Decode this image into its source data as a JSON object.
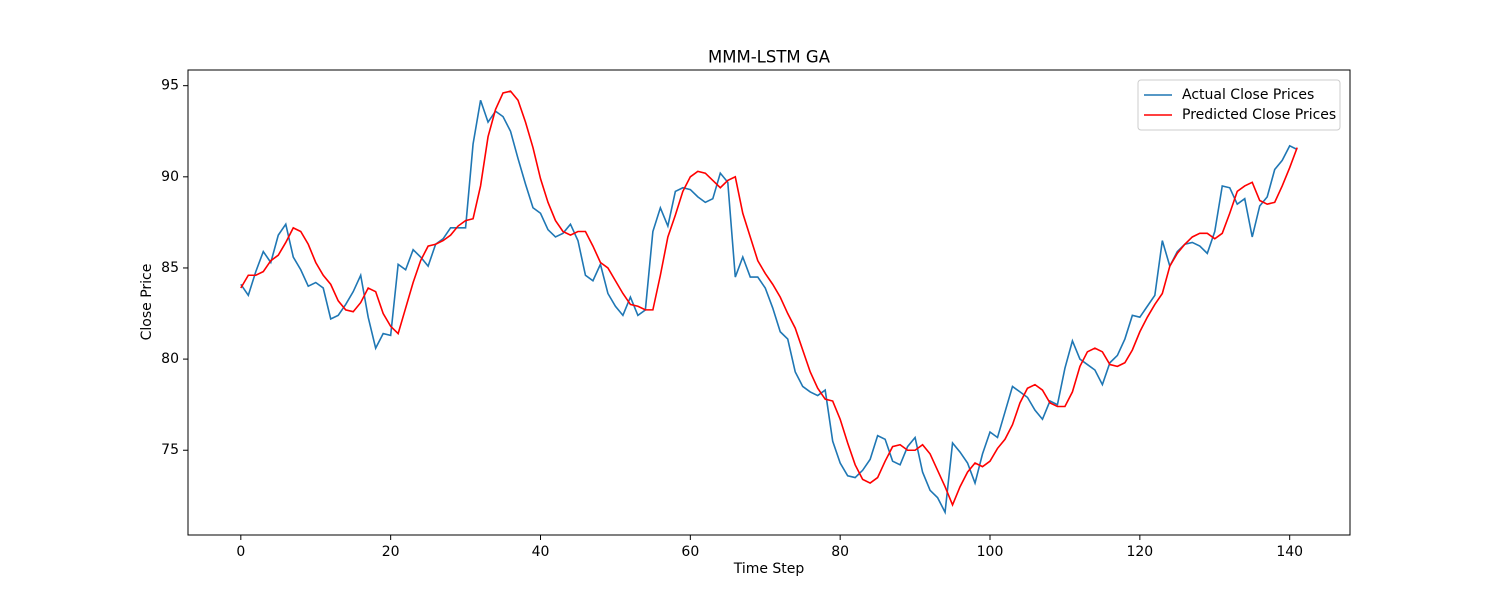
{
  "chart_data": {
    "type": "line",
    "title": "MMM-LSTM GA",
    "x_label": "Time Step",
    "y_label": "Close Price",
    "x": [
      0,
      1,
      2,
      3,
      4,
      5,
      6,
      7,
      8,
      9,
      10,
      11,
      12,
      13,
      14,
      15,
      16,
      17,
      18,
      19,
      20,
      21,
      22,
      23,
      24,
      25,
      26,
      27,
      28,
      29,
      30,
      31,
      32,
      33,
      34,
      35,
      36,
      37,
      38,
      39,
      40,
      41,
      42,
      43,
      44,
      45,
      46,
      47,
      48,
      49,
      50,
      51,
      52,
      53,
      54,
      55,
      56,
      57,
      58,
      59,
      60,
      61,
      62,
      63,
      64,
      65,
      66,
      67,
      68,
      69,
      70,
      71,
      72,
      73,
      74,
      75,
      76,
      77,
      78,
      79,
      80,
      81,
      82,
      83,
      84,
      85,
      86,
      87,
      88,
      89,
      90,
      91,
      92,
      93,
      94,
      95,
      96,
      97,
      98,
      99,
      100,
      101,
      102,
      103,
      104,
      105,
      106,
      107,
      108,
      109,
      110,
      111,
      112,
      113,
      114,
      115,
      116,
      117,
      118,
      119,
      120,
      121,
      122,
      123,
      124,
      125,
      126,
      127,
      128,
      129,
      130,
      131,
      132,
      133,
      134,
      135,
      136,
      137,
      138,
      139,
      140,
      141
    ],
    "series": [
      {
        "name": "Actual Close Prices",
        "color": "#1f77b4",
        "values": [
          84.1,
          83.5,
          84.8,
          85.9,
          85.3,
          86.8,
          87.4,
          85.6,
          84.9,
          84.0,
          84.2,
          83.9,
          82.2,
          82.4,
          83.0,
          83.7,
          84.6,
          82.3,
          80.6,
          81.4,
          81.3,
          85.2,
          84.9,
          86.0,
          85.6,
          85.1,
          86.3,
          86.6,
          87.2,
          87.2,
          87.2,
          91.8,
          94.2,
          93.0,
          93.6,
          93.3,
          92.5,
          91.0,
          89.6,
          88.3,
          88.0,
          87.1,
          86.7,
          86.9,
          87.4,
          86.5,
          84.6,
          84.3,
          85.2,
          83.6,
          82.9,
          82.4,
          83.4,
          82.4,
          82.7,
          87.0,
          88.3,
          87.3,
          89.2,
          89.4,
          89.3,
          88.9,
          88.6,
          88.8,
          90.2,
          89.7,
          84.5,
          85.6,
          84.5,
          84.5,
          83.9,
          82.8,
          81.5,
          81.1,
          79.3,
          78.5,
          78.2,
          78.0,
          78.3,
          75.5,
          74.3,
          73.6,
          73.5,
          73.9,
          74.5,
          75.8,
          75.6,
          74.4,
          74.2,
          75.2,
          75.7,
          73.8,
          72.8,
          72.4,
          71.6,
          75.4,
          74.9,
          74.3,
          73.2,
          74.8,
          76.0,
          75.7,
          77.1,
          78.5,
          78.2,
          77.9,
          77.2,
          76.7,
          77.7,
          77.5,
          79.5,
          81.0,
          80.0,
          79.7,
          79.4,
          78.6,
          79.8,
          80.2,
          81.1,
          82.4,
          82.3,
          82.9,
          83.5,
          86.5,
          85.1,
          85.9,
          86.3,
          86.4,
          86.2,
          85.8,
          87.0,
          89.5,
          89.4,
          88.5,
          88.8,
          86.7,
          88.4,
          88.9,
          90.4,
          90.9,
          91.7,
          91.5
        ]
      },
      {
        "name": "Predicted Close Prices",
        "color": "#ff0000",
        "values": [
          83.9,
          84.6,
          84.6,
          84.8,
          85.4,
          85.7,
          86.4,
          87.2,
          87.0,
          86.3,
          85.3,
          84.6,
          84.1,
          83.2,
          82.7,
          82.6,
          83.1,
          83.9,
          83.7,
          82.5,
          81.8,
          81.4,
          82.8,
          84.2,
          85.4,
          86.2,
          86.3,
          86.5,
          86.8,
          87.3,
          87.6,
          87.7,
          89.5,
          92.2,
          93.7,
          94.6,
          94.7,
          94.2,
          93.0,
          91.6,
          89.9,
          88.6,
          87.6,
          87.0,
          86.8,
          87.0,
          87.0,
          86.2,
          85.3,
          85.0,
          84.3,
          83.6,
          83.0,
          82.9,
          82.7,
          82.7,
          84.6,
          86.7,
          87.9,
          89.2,
          90.0,
          90.3,
          90.2,
          89.8,
          89.4,
          89.8,
          90.0,
          88.0,
          86.7,
          85.4,
          84.7,
          84.1,
          83.4,
          82.5,
          81.7,
          80.5,
          79.3,
          78.4,
          77.8,
          77.7,
          76.7,
          75.4,
          74.2,
          73.4,
          73.2,
          73.5,
          74.4,
          75.2,
          75.3,
          75.0,
          75.0,
          75.3,
          74.8,
          73.9,
          73.0,
          72.0,
          73.0,
          73.8,
          74.3,
          74.1,
          74.4,
          75.1,
          75.6,
          76.4,
          77.6,
          78.4,
          78.6,
          78.3,
          77.6,
          77.4,
          77.4,
          78.2,
          79.6,
          80.4,
          80.6,
          80.4,
          79.7,
          79.6,
          79.8,
          80.5,
          81.5,
          82.3,
          83.0,
          83.6,
          85.1,
          85.8,
          86.3,
          86.7,
          86.9,
          86.9,
          86.6,
          86.9,
          88.0,
          89.2,
          89.5,
          89.7,
          88.7,
          88.5,
          88.6,
          89.5,
          90.5,
          91.6
        ]
      }
    ],
    "xlim": [
      -7.05,
      148.05
    ],
    "ylim": [
      70.35,
      95.86
    ],
    "xticks": [
      0,
      20,
      40,
      60,
      80,
      100,
      120,
      140
    ],
    "yticks": [
      75,
      80,
      85,
      90,
      95
    ],
    "grid": false,
    "legend": "upper right"
  }
}
